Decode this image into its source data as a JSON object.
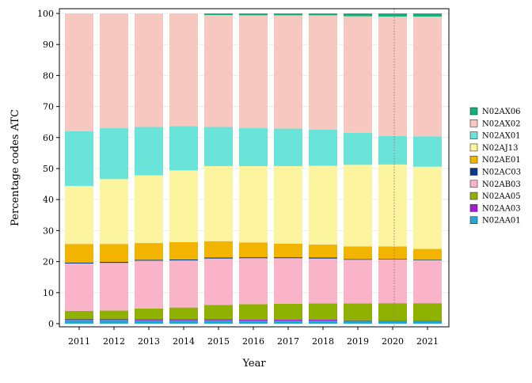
{
  "chart_data": {
    "type": "bar",
    "stacked": true,
    "title": "",
    "xlabel": "Year",
    "ylabel": "Percentage codes ATC",
    "ylim": [
      0,
      100
    ],
    "yticks": [
      0,
      10,
      20,
      30,
      40,
      50,
      60,
      70,
      80,
      90,
      100
    ],
    "grid": "horizontal",
    "legend_position": "right",
    "categories": [
      "2011",
      "2012",
      "2013",
      "2014",
      "2015",
      "2016",
      "2017",
      "2018",
      "2019",
      "2020",
      "2021"
    ],
    "reference_line": {
      "category": "2020",
      "style": "dotted",
      "color": "#b07070"
    },
    "series": [
      {
        "name": "N02AA01",
        "color": "#29a3cf",
        "values": [
          1.2,
          1.2,
          1.1,
          1.1,
          1.1,
          1.0,
          1.0,
          1.0,
          0.9,
          0.8,
          0.8
        ]
      },
      {
        "name": "N02AA03",
        "color": "#a21cd1",
        "values": [
          0.4,
          0.4,
          0.3,
          0.3,
          0.3,
          0.3,
          0.3,
          0.3,
          0.2,
          0.2,
          0.2
        ]
      },
      {
        "name": "N02AA05",
        "color": "#8fb200",
        "values": [
          2.5,
          2.6,
          3.5,
          3.8,
          4.6,
          5.0,
          5.1,
          5.2,
          5.4,
          5.6,
          5.6
        ]
      },
      {
        "name": "N02AB03",
        "color": "#f9b4c7",
        "values": [
          15.3,
          15.4,
          15.4,
          15.2,
          15.0,
          14.8,
          14.7,
          14.5,
          14.1,
          14.1,
          13.8
        ]
      },
      {
        "name": "N02AC03",
        "color": "#073a8a",
        "values": [
          0.3,
          0.3,
          0.3,
          0.3,
          0.3,
          0.3,
          0.3,
          0.3,
          0.2,
          0.2,
          0.2
        ]
      },
      {
        "name": "N02AE01",
        "color": "#f3b400",
        "values": [
          6.0,
          5.8,
          5.4,
          5.6,
          5.3,
          4.8,
          4.4,
          4.2,
          4.1,
          4.0,
          3.5
        ]
      },
      {
        "name": "N02AJ13",
        "color": "#fdf49f",
        "values": [
          18.7,
          20.9,
          21.8,
          23.1,
          24.2,
          24.6,
          25.0,
          25.4,
          26.3,
          26.4,
          26.5
        ]
      },
      {
        "name": "N02AX01",
        "color": "#6ae3d8",
        "values": [
          17.6,
          16.4,
          15.6,
          14.3,
          12.6,
          12.3,
          12.1,
          11.6,
          10.3,
          9.2,
          9.8
        ]
      },
      {
        "name": "N02AX02",
        "color": "#f7c8bf",
        "values": [
          38.0,
          37.0,
          36.6,
          36.3,
          36.1,
          36.3,
          36.5,
          36.9,
          37.6,
          38.5,
          38.6
        ]
      },
      {
        "name": "N02AX06",
        "color": "#12b07a",
        "values": [
          0.0,
          0.0,
          0.0,
          0.0,
          0.5,
          0.6,
          0.6,
          0.6,
          0.9,
          1.0,
          1.0
        ]
      }
    ]
  }
}
